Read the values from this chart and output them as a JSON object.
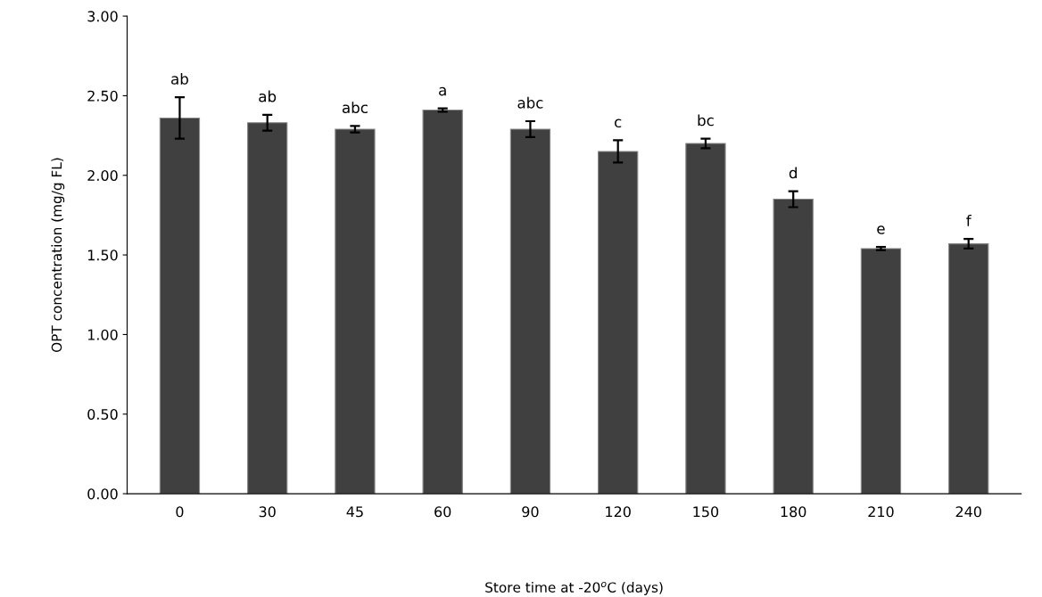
{
  "chart_data": {
    "type": "bar",
    "xlabel": "Store time at -20$^{o}$C (days)",
    "ylabel": "OPT concentration (mg/g FL)",
    "categories": [
      "0",
      "30",
      "45",
      "60",
      "90",
      "120",
      "150",
      "180",
      "210",
      "240"
    ],
    "values": [
      2.36,
      2.33,
      2.29,
      2.41,
      2.29,
      2.15,
      2.2,
      1.85,
      1.54,
      1.57
    ],
    "errors": [
      0.13,
      0.05,
      0.02,
      0.01,
      0.05,
      0.07,
      0.03,
      0.05,
      0.01,
      0.03
    ],
    "color": "#404040",
    "ylim": [
      0,
      3
    ],
    "yticks": [
      {
        "value": 0,
        "label": "0.00"
      },
      {
        "value": 0.5,
        "label": "0.50"
      },
      {
        "value": 1,
        "label": "1.00"
      },
      {
        "value": 1.5,
        "label": "1.50"
      },
      {
        "value": 2,
        "label": "2.00"
      },
      {
        "value": 2.5,
        "label": "2.50"
      },
      {
        "value": 3,
        "label": "3.00"
      }
    ],
    "grid": false,
    "annotations": [
      {
        "text": "ab",
        "x": "0",
        "y": 2.49
      },
      {
        "text": "ab",
        "x": "30",
        "y": 2.38
      },
      {
        "text": "abc",
        "x": "45",
        "y": 2.31
      },
      {
        "text": "a",
        "x": "60",
        "y": 2.42
      },
      {
        "text": "abc",
        "x": "90",
        "y": 2.34
      },
      {
        "text": "c",
        "x": "120",
        "y": 2.22
      },
      {
        "text": "bc",
        "x": "150",
        "y": 2.23
      },
      {
        "text": "d",
        "x": "180",
        "y": 1.9
      },
      {
        "text": "e",
        "x": "210",
        "y": 1.55
      },
      {
        "text": "f",
        "x": "240",
        "y": 1.6
      }
    ]
  }
}
